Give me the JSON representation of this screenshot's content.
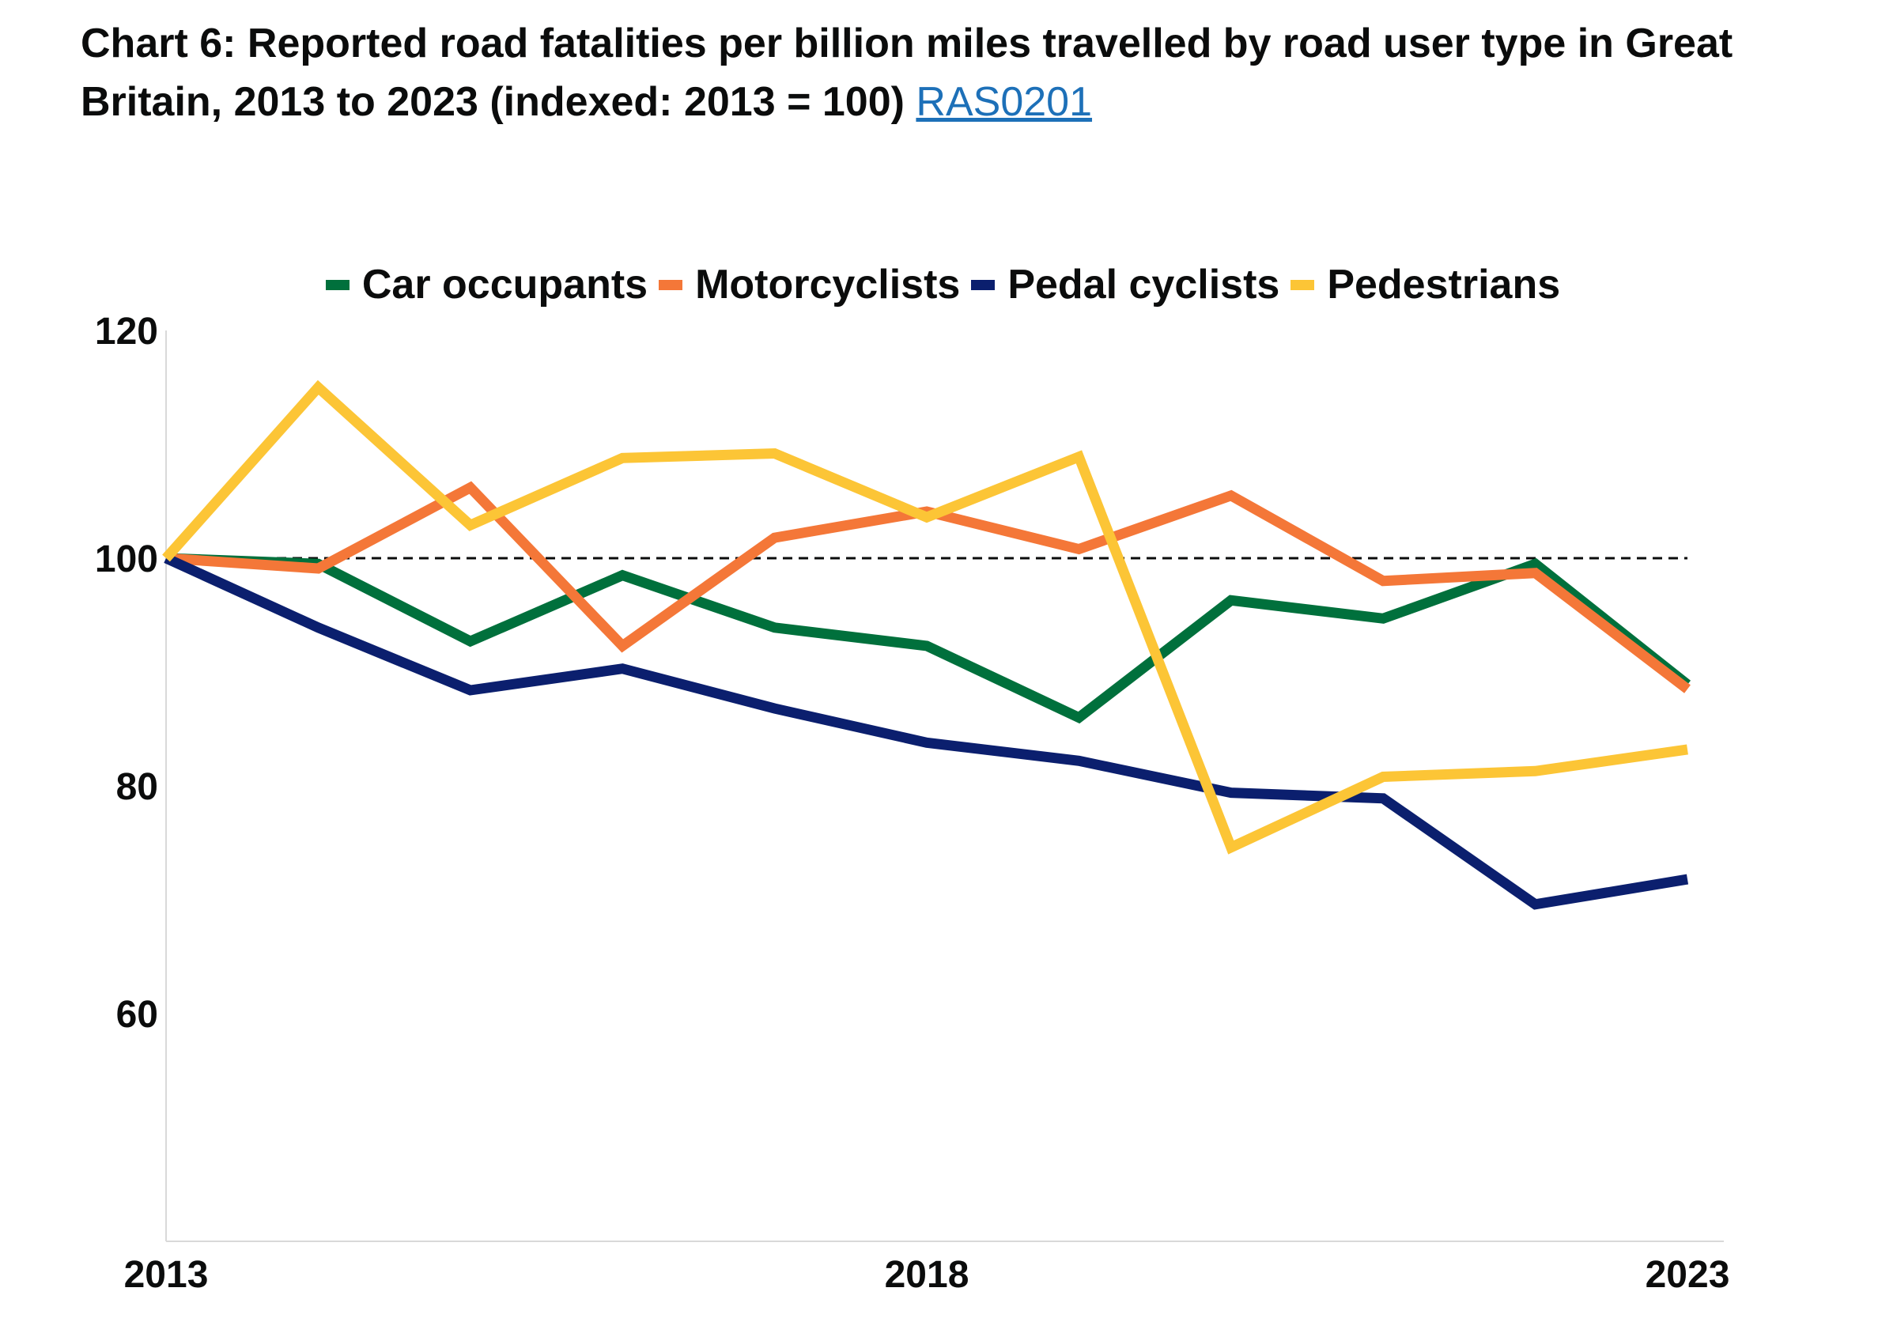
{
  "title_text": "Chart 6: Reported road fatalities per billion miles travelled by road user type in Great Britain, 2013 to 2023 (indexed: 2013 = 100)",
  "title_link": "RAS0201",
  "chart_data": {
    "type": "line",
    "x": [
      2013,
      2014,
      2015,
      2016,
      2017,
      2018,
      2019,
      2020,
      2021,
      2022,
      2023
    ],
    "x_tick_labels": [
      "2013",
      "2018",
      "2023"
    ],
    "y_tick_labels": [
      "120",
      "100",
      "80",
      "60"
    ],
    "ylim": [
      40,
      120
    ],
    "reference_line": 100,
    "legend_position": "top",
    "series": [
      {
        "name": "Car occupants",
        "color": "#00703c",
        "values": [
          100,
          99.5,
          92.7,
          98.5,
          93.9,
          92.3,
          86.0,
          96.3,
          94.7,
          99.5,
          88.9
        ]
      },
      {
        "name": "Motorcyclists",
        "color": "#f47738",
        "values": [
          100,
          99.1,
          106.2,
          92.3,
          101.8,
          104.1,
          100.8,
          105.5,
          98.0,
          98.7,
          88.5
        ]
      },
      {
        "name": "Pedal cyclists",
        "color": "#0b1f6e",
        "values": [
          100,
          93.9,
          88.4,
          90.3,
          86.8,
          83.8,
          82.2,
          79.4,
          78.9,
          69.6,
          71.8
        ]
      },
      {
        "name": "Pedestrians",
        "color": "#fcc536",
        "values": [
          100,
          115.0,
          102.9,
          108.8,
          109.2,
          103.6,
          108.9,
          74.6,
          80.8,
          81.3,
          83.2
        ]
      }
    ]
  }
}
